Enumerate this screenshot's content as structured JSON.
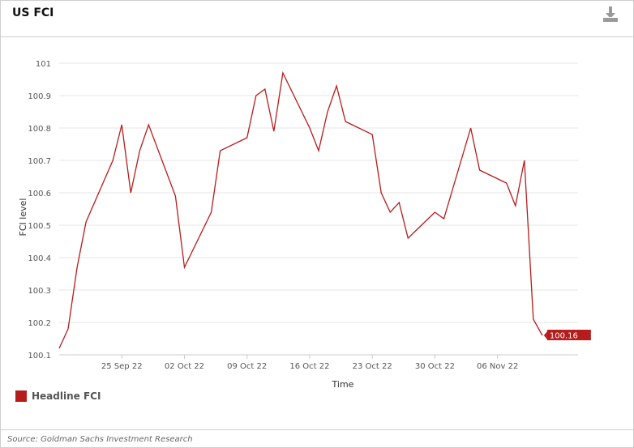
{
  "header": {
    "title": "US FCI",
    "download_icon": "download-icon"
  },
  "colors": {
    "series": "#b71c1c",
    "grid": "#e6e6e6",
    "axis_text": "#555555"
  },
  "legend": {
    "items": [
      {
        "label": "Headline FCI",
        "color": "#b71c1c"
      }
    ]
  },
  "footer": {
    "source": "Source: Goldman Sachs Investment Research"
  },
  "chart_data": {
    "type": "line",
    "title": "",
    "xlabel": "Time",
    "ylabel": "FCI level",
    "ylim": [
      100.1,
      101
    ],
    "yticks": [
      100.1,
      100.2,
      100.3,
      100.4,
      100.5,
      100.6,
      100.7,
      100.8,
      100.9,
      101
    ],
    "xlim": [
      "2022-09-18",
      "2022-11-15"
    ],
    "xticks": [
      {
        "date": "2022-09-25",
        "label": "25 Sep 22"
      },
      {
        "date": "2022-10-02",
        "label": "02 Oct 22"
      },
      {
        "date": "2022-10-09",
        "label": "09 Oct 22"
      },
      {
        "date": "2022-10-16",
        "label": "16 Oct 22"
      },
      {
        "date": "2022-10-23",
        "label": "23 Oct 22"
      },
      {
        "date": "2022-10-30",
        "label": "30 Oct 22"
      },
      {
        "date": "2022-11-06",
        "label": "06 Nov 22"
      }
    ],
    "grid": true,
    "legend_position": "bottom-left",
    "last_value_label": "100.16",
    "series": [
      {
        "name": "Headline FCI",
        "color": "#b71c1c",
        "points": [
          [
            "2022-09-18",
            100.12
          ],
          [
            "2022-09-19",
            100.18
          ],
          [
            "2022-09-20",
            100.37
          ],
          [
            "2022-09-21",
            100.51
          ],
          [
            "2022-09-24",
            100.7
          ],
          [
            "2022-09-25",
            100.81
          ],
          [
            "2022-09-26",
            100.6
          ],
          [
            "2022-09-27",
            100.73
          ],
          [
            "2022-09-28",
            100.81
          ],
          [
            "2022-10-01",
            100.59
          ],
          [
            "2022-10-02",
            100.37
          ],
          [
            "2022-10-05",
            100.54
          ],
          [
            "2022-10-06",
            100.73
          ],
          [
            "2022-10-09",
            100.77
          ],
          [
            "2022-10-10",
            100.9
          ],
          [
            "2022-10-11",
            100.92
          ],
          [
            "2022-10-12",
            100.79
          ],
          [
            "2022-10-13",
            100.97
          ],
          [
            "2022-10-16",
            100.8
          ],
          [
            "2022-10-17",
            100.73
          ],
          [
            "2022-10-18",
            100.85
          ],
          [
            "2022-10-19",
            100.93
          ],
          [
            "2022-10-20",
            100.82
          ],
          [
            "2022-10-23",
            100.78
          ],
          [
            "2022-10-24",
            100.6
          ],
          [
            "2022-10-25",
            100.54
          ],
          [
            "2022-10-26",
            100.57
          ],
          [
            "2022-10-27",
            100.46
          ],
          [
            "2022-10-30",
            100.54
          ],
          [
            "2022-10-31",
            100.52
          ],
          [
            "2022-11-03",
            100.8
          ],
          [
            "2022-11-04",
            100.67
          ],
          [
            "2022-11-07",
            100.63
          ],
          [
            "2022-11-08",
            100.56
          ],
          [
            "2022-11-09",
            100.7
          ],
          [
            "2022-11-10",
            100.21
          ],
          [
            "2022-11-11",
            100.16
          ]
        ]
      }
    ]
  }
}
